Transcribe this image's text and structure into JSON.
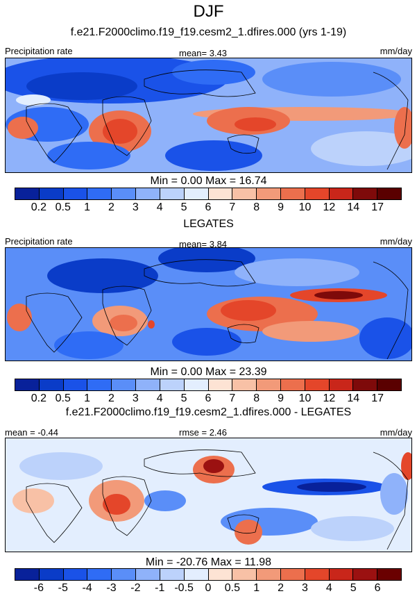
{
  "title": "DJF",
  "panels": [
    {
      "subtitle": "f.e21.F2000climo.f19_f19.cesm2_1.dfires.000 (yrs 1-19)",
      "left_label": "Precipitation rate",
      "center_label": "mean=   3.43",
      "right_label": "mm/day",
      "minmax": "Min =   0.00 Max =  16.74",
      "colorbar_ticks": [
        "0.2",
        "0.5",
        "1",
        "2",
        "3",
        "4",
        "5",
        "6",
        "7",
        "8",
        "9",
        "10",
        "12",
        "14",
        "17"
      ]
    },
    {
      "subtitle": "LEGATES",
      "left_label": "Precipitation rate",
      "center_label": "mean=   3.84",
      "right_label": "mm/day",
      "minmax": "Min =   0.00 Max =  23.39",
      "colorbar_ticks": [
        "0.2",
        "0.5",
        "1",
        "2",
        "3",
        "4",
        "5",
        "6",
        "7",
        "8",
        "9",
        "10",
        "12",
        "14",
        "17"
      ]
    },
    {
      "subtitle": "f.e21.F2000climo.f19_f19.cesm2_1.dfires.000 - LEGATES",
      "left_label": "mean =  -0.44",
      "center_label": "rmse =   2.46",
      "right_label": "mm/day",
      "minmax": "Min = -20.76 Max =  11.98",
      "colorbar_ticks": [
        "-6",
        "-5",
        "-4",
        "-3",
        "-2",
        "-1",
        "-0.5",
        "0",
        "0.5",
        "1",
        "2",
        "3",
        "4",
        "5",
        "6"
      ]
    }
  ],
  "colors": {
    "seq": [
      "#08219a",
      "#0a3cc8",
      "#1a52e8",
      "#2f6cf5",
      "#5a8ef8",
      "#8fb2fa",
      "#bcd2fb",
      "#e3eefe",
      "#fde3d4",
      "#f8c1a6",
      "#f29a79",
      "#ec6f4d",
      "#e4462a",
      "#c9261a",
      "#7e0a0a",
      "#5a0000"
    ],
    "div": [
      "#08219a",
      "#0a3cc8",
      "#1a52e8",
      "#2f6cf5",
      "#5a8ef8",
      "#8fb2fa",
      "#bcd2fb",
      "#e3eefe",
      "#fde3d4",
      "#f8c1a6",
      "#f29a79",
      "#ec6f4d",
      "#e4462a",
      "#c9261a",
      "#9b1111",
      "#6a0000"
    ]
  }
}
